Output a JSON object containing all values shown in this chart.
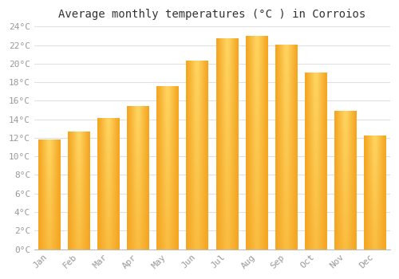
{
  "title": "Average monthly temperatures (°C ) in Corroios",
  "months": [
    "Jan",
    "Feb",
    "Mar",
    "Apr",
    "May",
    "Jun",
    "Jul",
    "Aug",
    "Sep",
    "Oct",
    "Nov",
    "Dec"
  ],
  "temperatures": [
    11.8,
    12.7,
    14.1,
    15.4,
    17.6,
    20.3,
    22.7,
    23.0,
    22.0,
    19.0,
    14.9,
    12.2
  ],
  "bar_color_bottom": "#F5A623",
  "bar_color_top": "#FFD966",
  "bar_color_center": "#FFC62A",
  "ylim": [
    0,
    24
  ],
  "ytick_step": 2,
  "background_color": "#FFFFFF",
  "grid_color": "#E0E0E0",
  "title_fontsize": 10,
  "tick_fontsize": 8,
  "font_family": "monospace",
  "bar_width": 0.75
}
